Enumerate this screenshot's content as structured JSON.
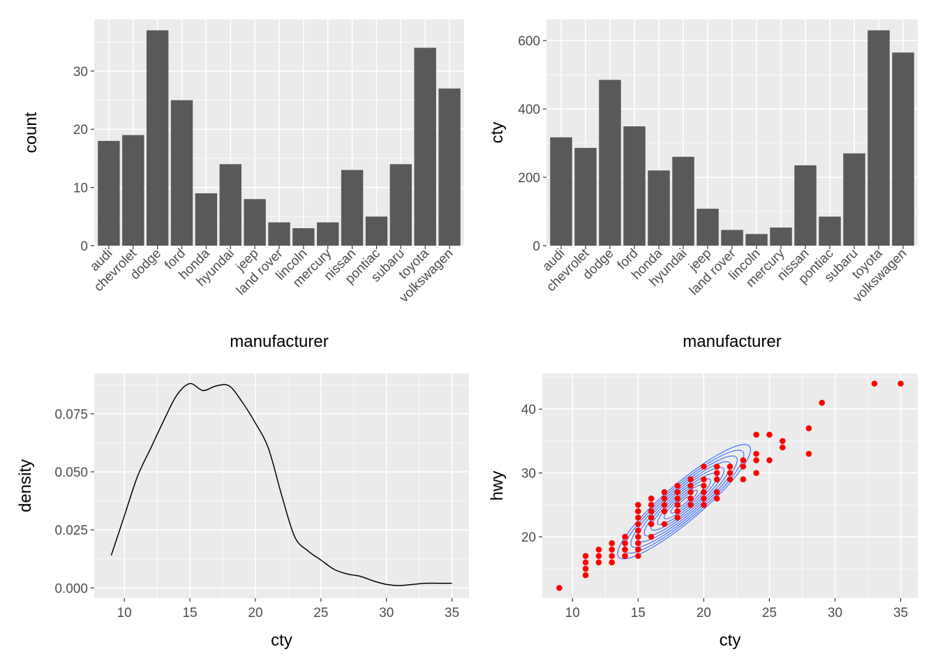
{
  "colors": {
    "panel_background": "#ebebeb",
    "grid_major": "#ffffff",
    "bar_fill": "#595959",
    "tick_text": "#4d4d4d",
    "density_line": "#000000",
    "contour_line": "#3366ff",
    "point_color": "#ff0000"
  },
  "chart_data": [
    {
      "type": "bar",
      "categories": [
        "audi",
        "chevrolet",
        "dodge",
        "ford",
        "honda",
        "hyundai",
        "jeep",
        "land rover",
        "lincoln",
        "mercury",
        "nissan",
        "pontiac",
        "subaru",
        "toyota",
        "volkswagen"
      ],
      "values": [
        18,
        19,
        37,
        25,
        9,
        14,
        8,
        4,
        3,
        4,
        13,
        5,
        14,
        34,
        27
      ],
      "xlabel": "manufacturer",
      "ylabel": "count",
      "ylim": [
        0,
        38.85
      ],
      "yticks": [
        0,
        10,
        20,
        30
      ],
      "grid": true
    },
    {
      "type": "bar",
      "categories": [
        "audi",
        "chevrolet",
        "dodge",
        "ford",
        "honda",
        "hyundai",
        "jeep",
        "land rover",
        "lincoln",
        "mercury",
        "nissan",
        "pontiac",
        "subaru",
        "toyota",
        "volkswagen"
      ],
      "values": [
        317,
        286,
        485,
        349,
        220,
        260,
        108,
        46,
        34,
        53,
        235,
        85,
        270,
        630,
        565
      ],
      "xlabel": "manufacturer",
      "ylabel": "cty",
      "ylim": [
        0,
        661.5
      ],
      "yticks": [
        0,
        200,
        400,
        600
      ],
      "grid": true
    },
    {
      "type": "line",
      "x": [
        9,
        10,
        11,
        12,
        13,
        14,
        15,
        16,
        17,
        18,
        19,
        20,
        21,
        22,
        23,
        24,
        25,
        26,
        27,
        28,
        29,
        30,
        31,
        32,
        33,
        34,
        35
      ],
      "y": [
        0.014,
        0.031,
        0.048,
        0.06,
        0.072,
        0.083,
        0.088,
        0.085,
        0.087,
        0.087,
        0.08,
        0.071,
        0.06,
        0.04,
        0.022,
        0.016,
        0.012,
        0.008,
        0.006,
        0.005,
        0.003,
        0.0015,
        0.001,
        0.0015,
        0.002,
        0.002,
        0.002
      ],
      "xlabel": "cty",
      "ylabel": "density",
      "xlim": [
        7.7,
        36.3
      ],
      "ylim": [
        -0.0044,
        0.0924
      ],
      "xticks": [
        10,
        15,
        20,
        25,
        30,
        35
      ],
      "yticks": [
        0.0,
        0.025,
        0.05,
        0.075
      ],
      "ytick_labels": [
        "0.000",
        "0.025",
        "0.050",
        "0.075"
      ],
      "grid": true
    },
    {
      "type": "scatter",
      "points": [
        [
          9,
          12
        ],
        [
          11,
          14
        ],
        [
          11,
          15
        ],
        [
          11,
          16
        ],
        [
          11,
          17
        ],
        [
          12,
          16
        ],
        [
          12,
          17
        ],
        [
          12,
          18
        ],
        [
          13,
          16
        ],
        [
          13,
          17
        ],
        [
          13,
          18
        ],
        [
          13,
          19
        ],
        [
          14,
          17
        ],
        [
          14,
          18
        ],
        [
          14,
          19
        ],
        [
          14,
          20
        ],
        [
          15,
          17
        ],
        [
          15,
          18
        ],
        [
          15,
          19
        ],
        [
          15,
          20
        ],
        [
          15,
          21
        ],
        [
          15,
          22
        ],
        [
          15,
          23
        ],
        [
          15,
          24
        ],
        [
          15,
          25
        ],
        [
          16,
          20
        ],
        [
          16,
          22
        ],
        [
          16,
          23
        ],
        [
          16,
          24
        ],
        [
          16,
          25
        ],
        [
          16,
          26
        ],
        [
          17,
          22
        ],
        [
          17,
          24
        ],
        [
          17,
          25
        ],
        [
          17,
          26
        ],
        [
          17,
          27
        ],
        [
          18,
          23
        ],
        [
          18,
          24
        ],
        [
          18,
          25
        ],
        [
          18,
          26
        ],
        [
          18,
          27
        ],
        [
          18,
          28
        ],
        [
          19,
          25
        ],
        [
          19,
          26
        ],
        [
          19,
          27
        ],
        [
          19,
          28
        ],
        [
          19,
          29
        ],
        [
          20,
          25
        ],
        [
          20,
          26
        ],
        [
          20,
          27
        ],
        [
          20,
          28
        ],
        [
          20,
          29
        ],
        [
          20,
          31
        ],
        [
          21,
          26
        ],
        [
          21,
          27
        ],
        [
          21,
          29
        ],
        [
          21,
          30
        ],
        [
          21,
          31
        ],
        [
          22,
          29
        ],
        [
          22,
          30
        ],
        [
          22,
          31
        ],
        [
          23,
          29
        ],
        [
          23,
          31
        ],
        [
          23,
          32
        ],
        [
          24,
          30
        ],
        [
          24,
          32
        ],
        [
          24,
          33
        ],
        [
          24,
          36
        ],
        [
          25,
          32
        ],
        [
          25,
          36
        ],
        [
          26,
          34
        ],
        [
          26,
          35
        ],
        [
          28,
          33
        ],
        [
          28,
          37
        ],
        [
          29,
          41
        ],
        [
          33,
          44
        ],
        [
          35,
          44
        ]
      ],
      "contour_levels": 10,
      "contour_note_center": [
        18.5,
        25.5
      ],
      "xlabel": "cty",
      "ylabel": "hwy",
      "xlim": [
        7.7,
        36.3
      ],
      "ylim": [
        10.4,
        45.6
      ],
      "xticks": [
        10,
        15,
        20,
        25,
        30,
        35
      ],
      "yticks": [
        20,
        30,
        40
      ],
      "grid": true
    }
  ]
}
